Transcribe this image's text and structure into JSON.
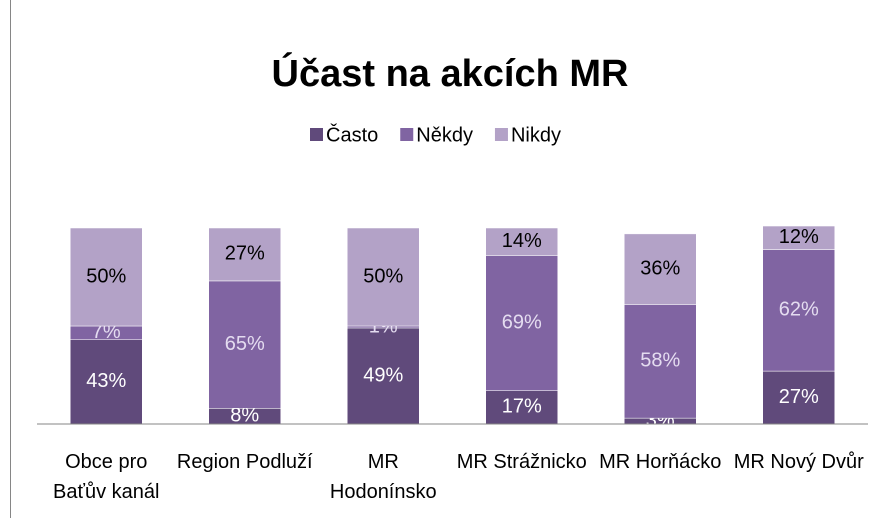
{
  "chart_data": {
    "type": "stacked_bar",
    "title": "Účast na akcích MR",
    "categories": [
      "Obce pro Baťův kanál",
      "Region Podluží",
      "MR Hodonínsko",
      "MR Strážnicko",
      "MR Horňácko",
      "MR Nový Dvůr"
    ],
    "series": [
      {
        "name": "Často",
        "color": "#604a7b",
        "label_color": "#ffffff",
        "values": [
          43,
          8,
          49,
          17,
          3,
          27
        ],
        "value_labels": [
          "43%",
          "8%",
          "49%",
          "17%",
          "3%",
          "27%"
        ]
      },
      {
        "name": "Někdy",
        "color": "#8064a2",
        "label_color": "#e4dcf0",
        "values": [
          7,
          65,
          1,
          69,
          58,
          62
        ],
        "value_labels": [
          "7%",
          "65%",
          "1%",
          "69%",
          "58%",
          "62%"
        ]
      },
      {
        "name": "Nikdy",
        "color": "#b3a2c7",
        "label_color": "#000000",
        "values": [
          50,
          27,
          50,
          14,
          36,
          12
        ],
        "value_labels": [
          "50%",
          "27%",
          "50%",
          "14%",
          "36%",
          "12%"
        ]
      }
    ],
    "ylim": [
      0,
      120
    ],
    "legend": "top"
  }
}
